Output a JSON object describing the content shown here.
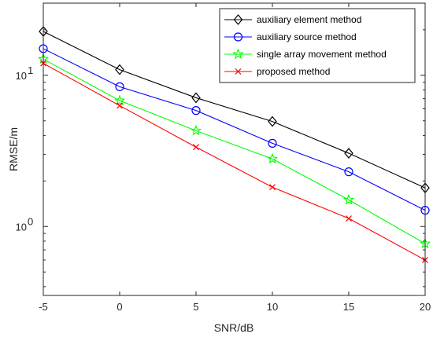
{
  "chart_data": {
    "type": "line",
    "title": "",
    "xlabel": "SNR/dB",
    "ylabel": "RMSE/m",
    "yscale": "log",
    "xlim": [
      -5,
      20
    ],
    "ylim": [
      0.35,
      30
    ],
    "x": [
      -5,
      0,
      5,
      10,
      15,
      20
    ],
    "x_ticks": [
      -5,
      0,
      5,
      10,
      15,
      20
    ],
    "x_tick_labels": [
      "-5",
      "0",
      "5",
      "10",
      "15",
      "20"
    ],
    "y_ticks": [
      1,
      10
    ],
    "y_tick_labels": [
      {
        "base": "10",
        "exp": "0"
      },
      {
        "base": "10",
        "exp": "1"
      }
    ],
    "grid": false,
    "legend_position": "top-right",
    "series": [
      {
        "name": "auxiliary element method",
        "color": "#000000",
        "marker": "diamond",
        "values": [
          19.5,
          10.9,
          7.1,
          4.95,
          3.05,
          1.8
        ]
      },
      {
        "name": "auxiliary source method",
        "color": "#0000ff",
        "marker": "circle",
        "values": [
          15.0,
          8.4,
          5.85,
          3.55,
          2.3,
          1.28
        ]
      },
      {
        "name": "single array movement method",
        "color": "#00ff00",
        "marker": "star",
        "values": [
          12.8,
          6.8,
          4.3,
          2.8,
          1.5,
          0.77
        ]
      },
      {
        "name": "proposed method",
        "color": "#ff0000",
        "marker": "x",
        "values": [
          12.0,
          6.3,
          3.35,
          1.82,
          1.13,
          0.6
        ]
      }
    ]
  }
}
